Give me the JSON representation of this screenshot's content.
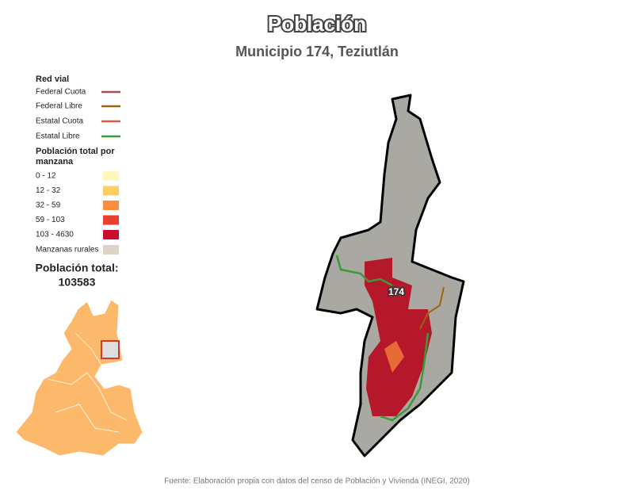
{
  "title": "Población",
  "subtitle": "Municipio 174, Teziutlán",
  "legend": {
    "roads_title": "Red vial",
    "roads": [
      {
        "label": "Federal Cuota",
        "color": "#a0504f"
      },
      {
        "label": "Federal Libre",
        "color": "#a0620f"
      },
      {
        "label": "Estatal Cuota",
        "color": "#d05a4a"
      },
      {
        "label": "Estatal Libre",
        "color": "#3a9a3a"
      }
    ],
    "population_title": [
      "Población total por",
      "manzana"
    ],
    "classes": [
      {
        "label": "0 - 12",
        "color": "#fff7bc"
      },
      {
        "label": "12 - 32",
        "color": "#fecf60"
      },
      {
        "label": "32 - 59",
        "color": "#fd8d3c"
      },
      {
        "label": "59 - 103",
        "color": "#ea3f2f"
      },
      {
        "label": "103 - 4630",
        "color": "#c8102e"
      }
    ],
    "rural": {
      "label": "Manzanas rurales",
      "color": "#ddd3c4"
    }
  },
  "total_label": "Población total:",
  "total_value": 103583,
  "map_label": "174",
  "source": "Fuente: Elaboración propia con datos del censo de Población y Vivienda (INEGI, 2020)"
}
